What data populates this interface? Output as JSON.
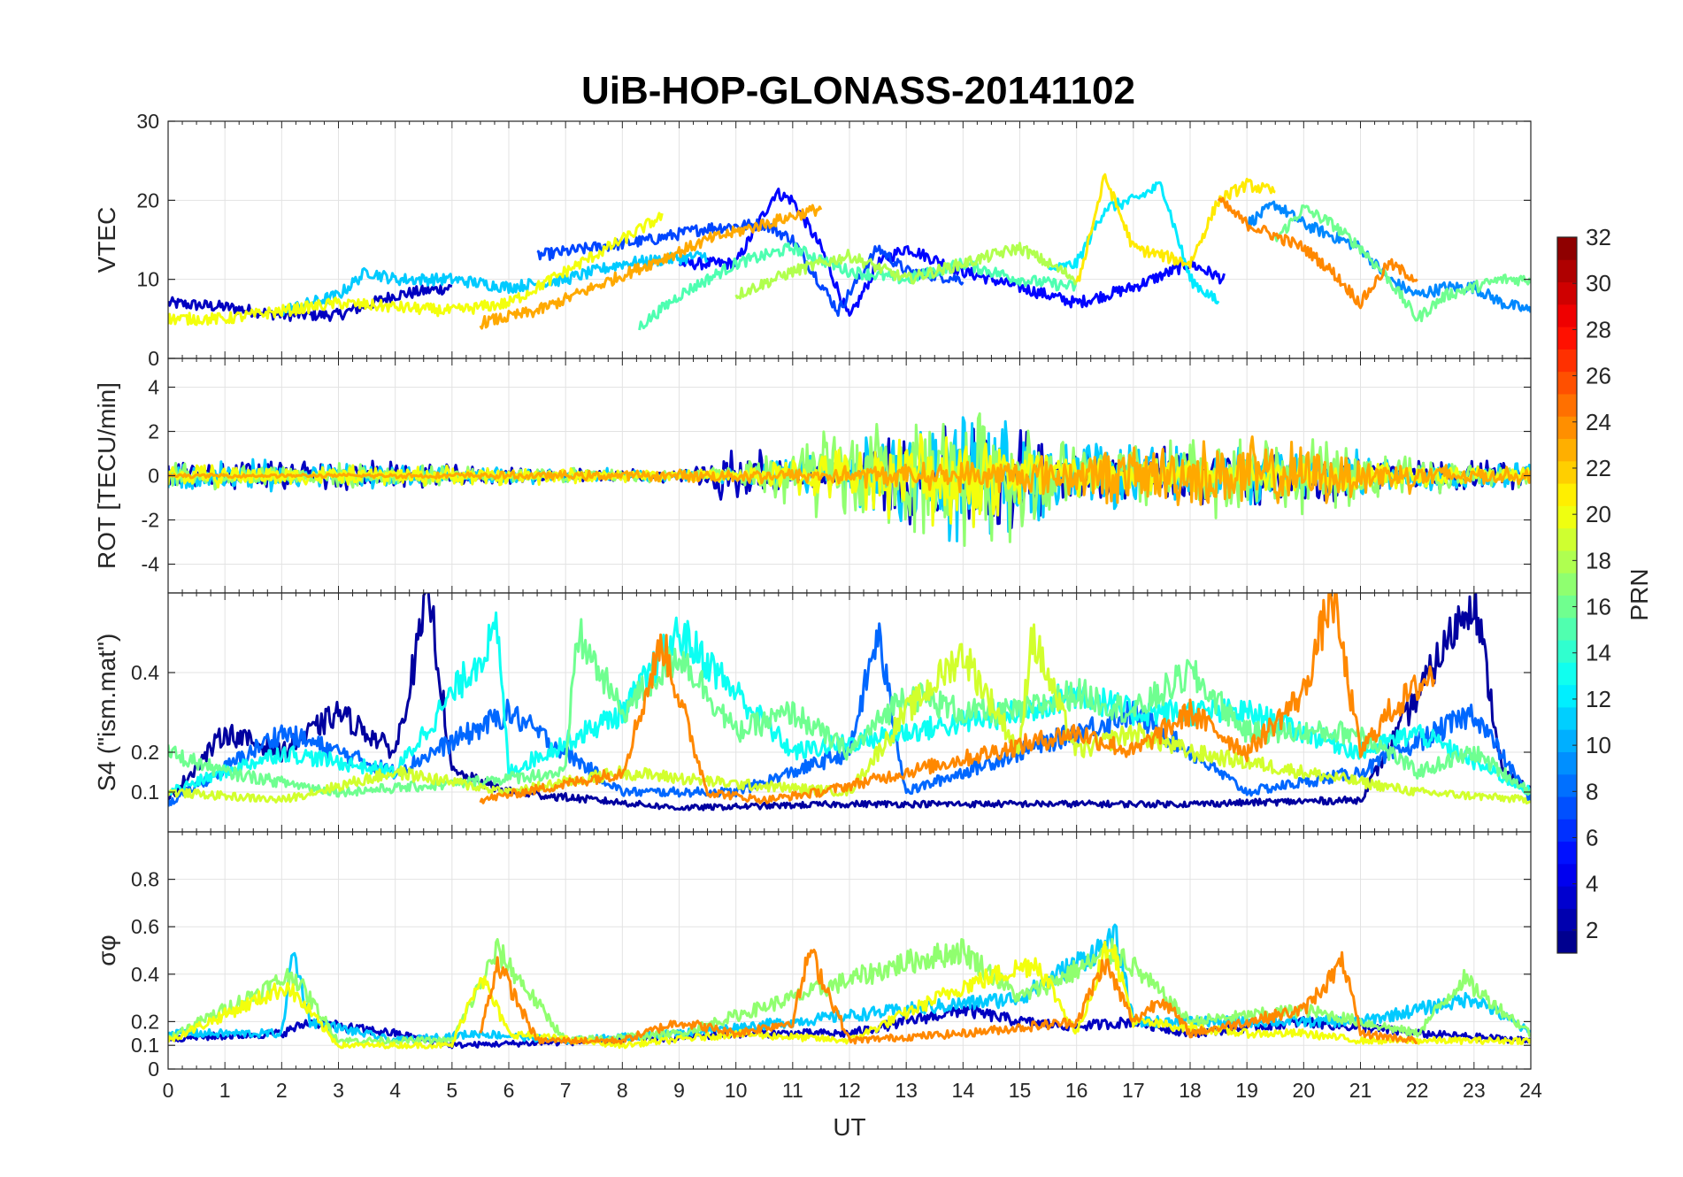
{
  "title": "UiB-HOP-GLONASS-20141102",
  "chart_data": [
    {
      "type": "line",
      "panel": "vtec",
      "ylabel": "VTEC",
      "ylim": [
        0,
        30
      ],
      "yticks": [
        0,
        10,
        20,
        30
      ],
      "xlim": [
        0,
        24
      ],
      "xticks": [
        0,
        1,
        2,
        3,
        4,
        5,
        6,
        7,
        8,
        9,
        10,
        11,
        12,
        13,
        14,
        15,
        16,
        17,
        18,
        19,
        20,
        21,
        22,
        23,
        24
      ],
      "grid": true,
      "series": [
        {
          "prn": 3,
          "x": [
            0,
            1,
            2,
            3,
            4,
            5
          ],
          "y": [
            7,
            6.5,
            5.5,
            5.5,
            8,
            9
          ]
        },
        {
          "prn": 5,
          "x": [
            9,
            10,
            10.7,
            11,
            11.5,
            12,
            12.5,
            13,
            14,
            15,
            16,
            17,
            18,
            18.6
          ],
          "y": [
            12,
            12,
            21,
            20,
            14,
            5,
            12,
            14,
            11,
            9,
            7,
            9,
            12,
            10
          ]
        },
        {
          "prn": 7,
          "x": [
            6.5,
            7.5,
            8.5,
            9.5,
            10.5,
            11,
            11.8,
            12.5,
            13,
            14
          ],
          "y": [
            13,
            14,
            15,
            16.5,
            17,
            15,
            6,
            14,
            11,
            10
          ]
        },
        {
          "prn": 9,
          "x": [
            19,
            19.5,
            20,
            21,
            21.5,
            22,
            22.5,
            23,
            23.5,
            24
          ],
          "y": [
            17,
            19.5,
            17,
            14,
            10,
            8,
            9,
            9,
            7,
            6
          ]
        },
        {
          "prn": 11,
          "x": [
            2,
            3,
            3.5,
            4,
            5,
            6,
            7,
            8,
            9.5
          ],
          "y": [
            6,
            8,
            11,
            10,
            10,
            9,
            10,
            12,
            13
          ]
        },
        {
          "prn": 12,
          "x": [
            15.5,
            16,
            16.5,
            17,
            17.5,
            18,
            18.5
          ],
          "y": [
            11,
            12,
            19,
            20,
            22,
            10,
            7
          ]
        },
        {
          "prn": 15,
          "x": [
            8.3,
            9,
            10,
            11,
            12,
            13,
            14,
            15,
            16
          ],
          "y": [
            4,
            8,
            12,
            14,
            11,
            10,
            12,
            10,
            9
          ]
        },
        {
          "prn": 16,
          "x": [
            19.5,
            20,
            20.5,
            21,
            21.5,
            22,
            22.5,
            23,
            23.5,
            24
          ],
          "y": [
            15,
            19,
            17,
            14,
            10,
            5,
            8,
            9,
            10,
            10
          ]
        },
        {
          "prn": 18,
          "x": [
            10,
            11,
            12,
            13,
            14,
            15,
            16
          ],
          "y": [
            8,
            11,
            13,
            10,
            12,
            14,
            10
          ]
        },
        {
          "prn": 20,
          "x": [
            0,
            1,
            2,
            3,
            4,
            5,
            6,
            7,
            8,
            8.7
          ],
          "y": [
            5,
            5,
            6,
            7,
            6.5,
            6,
            7,
            11,
            15,
            18
          ]
        },
        {
          "prn": 21,
          "x": [
            16,
            16.5,
            17,
            18,
            18.5,
            19,
            19.5
          ],
          "y": [
            9,
            23,
            14,
            12,
            20,
            22,
            21
          ]
        },
        {
          "prn": 23,
          "x": [
            5.5,
            6.5,
            7.5,
            8.5,
            9.5,
            10.5,
            11.5
          ],
          "y": [
            4.5,
            6,
            9,
            12,
            15,
            17,
            19
          ]
        },
        {
          "prn": 24,
          "x": [
            18.5,
            19,
            20,
            20.5,
            21,
            21.5,
            22
          ],
          "y": [
            20,
            17,
            14,
            11,
            7,
            12,
            10
          ]
        }
      ]
    },
    {
      "type": "line",
      "panel": "rot",
      "ylabel": "ROT [TECU/min]",
      "ylim": [
        -5.3,
        5.3
      ],
      "yticks": [
        -4,
        -2,
        0,
        2,
        4
      ],
      "xlim": [
        0,
        24
      ],
      "grid": true,
      "series": [
        {
          "prn": 3,
          "x": [
            0,
            3,
            6,
            9,
            10,
            11,
            12,
            13,
            14,
            15,
            16,
            17,
            18,
            19,
            20,
            21,
            22,
            23,
            24
          ],
          "amplitude": [
            0.8,
            0.8,
            0.4,
            0.3,
            1.8,
            0.5,
            1.2,
            2.5,
            2.8,
            2.6,
            1.6,
            1.4,
            1.5,
            1.5,
            1.4,
            1.0,
            0.8,
            0.8,
            0.6
          ]
        },
        {
          "prn": 11,
          "x": [
            0,
            3,
            6,
            9,
            10,
            11,
            12,
            13,
            14,
            15,
            16,
            17,
            18,
            19,
            20,
            21,
            22,
            23,
            24
          ],
          "amplitude": [
            0.9,
            0.7,
            0.4,
            0.3,
            0.4,
            0.9,
            1.6,
            2.5,
            3.5,
            2.6,
            1.8,
            1.6,
            1.4,
            1.5,
            1.4,
            1.2,
            0.9,
            0.8,
            0.6
          ]
        },
        {
          "prn": 17,
          "x": [
            0,
            3,
            6,
            9,
            10,
            11,
            12,
            13,
            14,
            15,
            16,
            17,
            18,
            19,
            20,
            21,
            22,
            23,
            24
          ],
          "amplitude": [
            0.7,
            0.6,
            0.4,
            0.3,
            0.4,
            2.2,
            2.5,
            3.0,
            3.5,
            3.0,
            1.6,
            1.8,
            2.0,
            2.2,
            2.0,
            1.4,
            0.9,
            0.7,
            0.6
          ]
        },
        {
          "prn": 20,
          "x": [
            0,
            3,
            6,
            9,
            10,
            11,
            12,
            13,
            14,
            15,
            16,
            17,
            18,
            19,
            20,
            21,
            22,
            23,
            24
          ],
          "amplitude": [
            0.6,
            0.5,
            0.5,
            0.3,
            0.3,
            1.0,
            1.5,
            2.2,
            3.0,
            2.0,
            1.2,
            1.0,
            1.0,
            1.0,
            0.9,
            0.8,
            0.6,
            0.5,
            0.4
          ]
        },
        {
          "prn": 23,
          "x": [
            0,
            3,
            6,
            9,
            10,
            11,
            12,
            13,
            14,
            15,
            16,
            17,
            18,
            19,
            20,
            21,
            22,
            23,
            24
          ],
          "amplitude": [
            0.1,
            0.1,
            0.2,
            0.3,
            0.4,
            0.4,
            0.6,
            0.6,
            0.8,
            1.0,
            1.2,
            1.6,
            1.8,
            2.1,
            1.6,
            1.2,
            0.8,
            0.5,
            0.4
          ]
        }
      ]
    },
    {
      "type": "line",
      "panel": "s4",
      "ylabel": "S4 (\"ism.mat\")",
      "ylim": [
        0,
        0.6
      ],
      "yticks": [
        0.1,
        0.2,
        0.4
      ],
      "xlim": [
        0,
        24
      ],
      "grid": true,
      "series": [
        {
          "prn": 2,
          "x": [
            0,
            1,
            2,
            3,
            4,
            4.6,
            5,
            6,
            9,
            12,
            15,
            18,
            21,
            23,
            23.5,
            24
          ],
          "y": [
            0.08,
            0.25,
            0.2,
            0.3,
            0.2,
            0.6,
            0.15,
            0.1,
            0.06,
            0.07,
            0.07,
            0.07,
            0.08,
            0.6,
            0.15,
            0.1
          ]
        },
        {
          "prn": 8,
          "x": [
            0,
            2,
            4,
            6,
            8,
            10,
            12,
            12.5,
            13,
            15,
            17,
            19,
            21,
            23,
            24
          ],
          "y": [
            0.07,
            0.25,
            0.15,
            0.3,
            0.1,
            0.1,
            0.2,
            0.5,
            0.1,
            0.2,
            0.3,
            0.1,
            0.15,
            0.3,
            0.08
          ]
        },
        {
          "prn": 13,
          "x": [
            0,
            2,
            4,
            5.8,
            6,
            8,
            9,
            11,
            13,
            15,
            16,
            17,
            19,
            21,
            22,
            24
          ],
          "y": [
            0.1,
            0.2,
            0.15,
            0.5,
            0.15,
            0.3,
            0.5,
            0.2,
            0.25,
            0.3,
            0.35,
            0.3,
            0.3,
            0.2,
            0.25,
            0.1
          ]
        },
        {
          "prn": 16,
          "x": [
            0,
            1,
            3,
            5,
            7,
            7.2,
            8,
            9,
            10,
            11,
            12,
            13,
            14,
            15,
            16,
            17,
            18,
            19,
            20,
            21,
            22,
            23,
            24
          ],
          "y": [
            0.2,
            0.15,
            0.1,
            0.12,
            0.15,
            0.5,
            0.3,
            0.45,
            0.25,
            0.3,
            0.2,
            0.35,
            0.3,
            0.3,
            0.35,
            0.3,
            0.4,
            0.25,
            0.25,
            0.25,
            0.15,
            0.2,
            0.1
          ]
        },
        {
          "prn": 19,
          "x": [
            0,
            2,
            4,
            6,
            8,
            10,
            12,
            13,
            14,
            15,
            15.2,
            16,
            17,
            18,
            20,
            22,
            24
          ],
          "y": [
            0.1,
            0.08,
            0.15,
            0.1,
            0.15,
            0.12,
            0.1,
            0.3,
            0.45,
            0.2,
            0.5,
            0.2,
            0.25,
            0.2,
            0.15,
            0.1,
            0.08
          ]
        },
        {
          "prn": 24,
          "x": [
            5.5,
            7,
            8,
            8.7,
            9.5,
            10.5,
            11.5,
            16,
            17,
            18,
            19,
            20,
            20.5,
            21,
            21.5,
            22.3
          ],
          "y": [
            0.08,
            0.12,
            0.15,
            0.48,
            0.1,
            0.08,
            0.1,
            0.25,
            0.2,
            0.3,
            0.2,
            0.35,
            0.6,
            0.2,
            0.3,
            0.4
          ]
        }
      ]
    },
    {
      "type": "line",
      "panel": "sigma_phi",
      "ylabel": "σφ",
      "ylim": [
        0,
        1
      ],
      "yticks": [
        0,
        0.1,
        0.2,
        0.4,
        0.6,
        0.8
      ],
      "xlim": [
        0,
        24
      ],
      "xlabel": "UT",
      "grid": true,
      "series": [
        {
          "prn": 3,
          "x": [
            0,
            2,
            2.5,
            3,
            4,
            5,
            8,
            10,
            12,
            13,
            14,
            15,
            16,
            17,
            18,
            20,
            22,
            24
          ],
          "y": [
            0.13,
            0.15,
            0.2,
            0.18,
            0.15,
            0.1,
            0.12,
            0.15,
            0.15,
            0.2,
            0.25,
            0.2,
            0.18,
            0.2,
            0.15,
            0.2,
            0.15,
            0.12
          ]
        },
        {
          "prn": 11,
          "x": [
            0,
            2,
            2.2,
            2.5,
            4,
            5.5,
            7,
            9,
            11,
            13,
            15,
            16.7,
            17,
            19,
            21,
            23,
            24
          ],
          "y": [
            0.15,
            0.15,
            0.5,
            0.2,
            0.12,
            0.15,
            0.12,
            0.15,
            0.2,
            0.25,
            0.3,
            0.55,
            0.2,
            0.2,
            0.2,
            0.3,
            0.15
          ]
        },
        {
          "prn": 17,
          "x": [
            0,
            2.2,
            3,
            5,
            5.8,
            7,
            9,
            11,
            13,
            14,
            15,
            16.7,
            18,
            20,
            21,
            22,
            22.8,
            24
          ],
          "y": [
            0.13,
            0.4,
            0.12,
            0.12,
            0.5,
            0.12,
            0.15,
            0.3,
            0.45,
            0.5,
            0.3,
            0.5,
            0.2,
            0.25,
            0.2,
            0.15,
            0.38,
            0.15
          ]
        },
        {
          "prn": 20,
          "x": [
            0,
            2.1,
            3,
            5,
            5.5,
            6,
            8,
            10,
            12,
            14,
            15.3,
            16,
            16.6,
            17,
            19,
            20,
            21,
            24
          ],
          "y": [
            0.12,
            0.35,
            0.1,
            0.1,
            0.4,
            0.15,
            0.1,
            0.15,
            0.12,
            0.35,
            0.45,
            0.15,
            0.55,
            0.2,
            0.15,
            0.15,
            0.12,
            0.12
          ]
        },
        {
          "prn": 24,
          "x": [
            5.5,
            5.8,
            6.5,
            8,
            9,
            10,
            11,
            11.3,
            12,
            14,
            16,
            16.5,
            17,
            17.5,
            18,
            19,
            20,
            20.7,
            21,
            22
          ],
          "y": [
            0.15,
            0.45,
            0.12,
            0.12,
            0.2,
            0.15,
            0.2,
            0.5,
            0.12,
            0.15,
            0.2,
            0.45,
            0.2,
            0.3,
            0.15,
            0.2,
            0.25,
            0.45,
            0.15,
            0.12
          ]
        }
      ]
    }
  ],
  "colorbar": {
    "label": "PRN",
    "range": [
      1,
      32
    ],
    "ticks": [
      2,
      4,
      6,
      8,
      10,
      12,
      14,
      16,
      18,
      20,
      22,
      24,
      26,
      28,
      30,
      32
    ],
    "colormap": "jet",
    "levels": 32
  }
}
